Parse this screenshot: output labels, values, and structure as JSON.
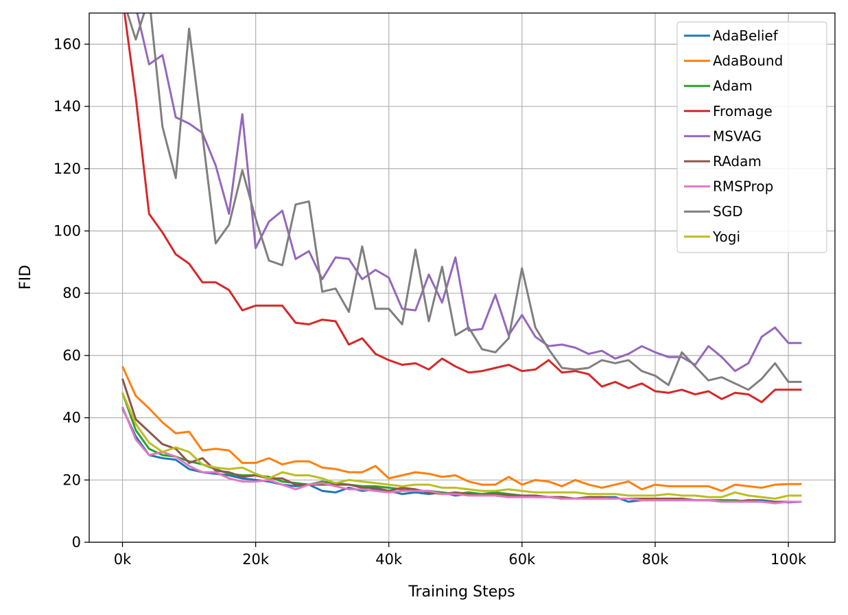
{
  "chart_data": {
    "type": "line",
    "title": "",
    "xlabel": "Training Steps",
    "ylabel": "FID",
    "xlim": [
      -5000,
      107000
    ],
    "ylim": [
      0,
      170
    ],
    "xticks": [
      0,
      20000,
      40000,
      60000,
      80000,
      100000
    ],
    "xtick_labels": [
      "0k",
      "20k",
      "40k",
      "60k",
      "80k",
      "100k"
    ],
    "yticks": [
      0,
      20,
      40,
      60,
      80,
      100,
      120,
      140,
      160
    ],
    "ytick_labels": [
      "0",
      "20",
      "40",
      "60",
      "80",
      "100",
      "120",
      "140",
      "160"
    ],
    "grid": true,
    "legend_position": "top-right",
    "x": [
      0,
      2000,
      4000,
      6000,
      8000,
      10000,
      12000,
      14000,
      16000,
      18000,
      20000,
      22000,
      24000,
      26000,
      28000,
      30000,
      32000,
      34000,
      36000,
      38000,
      40000,
      42000,
      44000,
      46000,
      48000,
      50000,
      52000,
      54000,
      56000,
      58000,
      60000,
      62000,
      64000,
      66000,
      68000,
      70000,
      72000,
      74000,
      76000,
      78000,
      80000,
      82000,
      84000,
      86000,
      88000,
      90000,
      92000,
      94000,
      96000,
      98000,
      100000,
      102000
    ],
    "series": [
      {
        "name": "AdaBelief",
        "color": "#1f77b4",
        "values": [
          43,
          34,
          28,
          27,
          26.5,
          23.5,
          22.5,
          22,
          21.5,
          20.5,
          20,
          19.5,
          18.5,
          18,
          18.5,
          16.5,
          16,
          17.5,
          16.5,
          17,
          16.5,
          15.5,
          16,
          15.5,
          16,
          15,
          15.5,
          15,
          15,
          14.5,
          15,
          14.5,
          14.5,
          14,
          14,
          14,
          14.5,
          14.5,
          13,
          13.5,
          13.5,
          14,
          14,
          13.5,
          13.5,
          13.5,
          13,
          13.5,
          13.5,
          13,
          12.8,
          13
        ]
      },
      {
        "name": "AdaBound",
        "color": "#ff7f0e",
        "values": [
          56.5,
          47,
          43,
          38.5,
          35,
          35.5,
          29.5,
          30,
          29.5,
          25.5,
          25.5,
          27,
          25,
          26,
          26,
          24,
          23.5,
          22.5,
          22.5,
          24.5,
          20.5,
          21.5,
          22.5,
          22,
          21,
          21.5,
          19.5,
          18.5,
          18.5,
          21,
          18.5,
          20,
          19.5,
          18,
          20,
          18.5,
          17.5,
          18.5,
          19.5,
          17,
          18.5,
          18,
          18,
          18,
          18,
          16.5,
          18.5,
          18,
          17.5,
          18.5,
          18.7,
          18.7
        ]
      },
      {
        "name": "Adam",
        "color": "#2ca02c",
        "values": [
          48,
          36,
          30,
          28,
          27.5,
          26,
          25,
          23.5,
          22,
          21.5,
          21.5,
          21,
          19.5,
          19,
          18.5,
          19.5,
          19,
          18.5,
          18,
          18,
          17.5,
          17,
          16.5,
          16.5,
          16,
          15.5,
          16,
          15.5,
          16,
          15.5,
          15,
          15,
          14.5,
          14.5,
          14,
          14.5,
          14.5,
          14,
          14,
          14,
          13.5,
          13.5,
          13.5,
          13.5,
          13.5,
          13.5,
          13.5,
          13,
          13,
          13,
          13,
          13
        ]
      },
      {
        "name": "Fromage",
        "color": "#d62728",
        "values": [
          175,
          143,
          105.5,
          99.5,
          92.5,
          89.5,
          83.5,
          83.5,
          81,
          74.5,
          76,
          76,
          76,
          70.5,
          70,
          71.5,
          71,
          63.5,
          65.5,
          60.5,
          58.5,
          57,
          57.5,
          55.5,
          59,
          56.5,
          54.5,
          55,
          56,
          57,
          55,
          55.5,
          58.5,
          54.5,
          55,
          54,
          50,
          51.5,
          49.5,
          51,
          48.5,
          48,
          49,
          47.5,
          48.5,
          46,
          48,
          47.5,
          45,
          49,
          49,
          49
        ]
      },
      {
        "name": "MSVAG",
        "color": "#9467bd",
        "values": [
          175,
          172,
          153.5,
          156.5,
          136.5,
          134.5,
          131.5,
          121,
          105.5,
          137.5,
          94.5,
          103,
          106.5,
          91,
          93.5,
          84.5,
          91.5,
          91,
          84.5,
          87.5,
          85,
          75,
          74.5,
          86,
          77,
          91.5,
          68,
          68.5,
          79.5,
          66.5,
          73,
          66,
          63,
          63.5,
          62.5,
          60.5,
          61.5,
          59,
          60.5,
          63,
          61,
          59.5,
          59.5,
          57,
          63,
          59.5,
          55,
          57.5,
          66,
          69,
          64,
          64
        ]
      },
      {
        "name": "RAdam",
        "color": "#8c564b",
        "values": [
          52.5,
          39.5,
          35.5,
          31.5,
          30,
          25.5,
          27,
          23,
          22.5,
          21,
          21.5,
          20.5,
          20.5,
          18.5,
          18.5,
          18.5,
          18.5,
          18.5,
          17.5,
          17.5,
          16.5,
          17.5,
          17,
          16,
          15.5,
          16,
          15.5,
          15,
          15.5,
          15,
          15,
          15,
          14.5,
          14.5,
          14,
          14.5,
          14.5,
          14,
          14,
          14,
          14,
          14,
          14,
          13.5,
          13.5,
          13,
          13,
          13.5,
          13,
          13,
          13,
          13
        ]
      },
      {
        "name": "RMSProp",
        "color": "#e377c2",
        "values": [
          43.5,
          33,
          28,
          29,
          27.5,
          24.5,
          22.5,
          22.5,
          20.5,
          19.5,
          19.5,
          20,
          18.5,
          17,
          18.5,
          19,
          18,
          17,
          17,
          16.5,
          16,
          16.5,
          16.5,
          16.5,
          15.5,
          15.5,
          15,
          15,
          15,
          14.5,
          14.5,
          14.5,
          14.5,
          14,
          14,
          14,
          14,
          14,
          14,
          13.5,
          13.5,
          13.5,
          13.5,
          13.5,
          13.5,
          13,
          13,
          13,
          13,
          12.5,
          13,
          13
        ]
      },
      {
        "name": "SGD",
        "color": "#7f7f7f",
        "values": [
          175,
          161.5,
          175,
          133.5,
          117,
          165,
          131,
          96,
          102,
          119.5,
          104,
          90.5,
          89,
          108.5,
          109.5,
          80.5,
          81.5,
          74,
          95,
          75,
          75,
          70,
          94,
          71,
          88.5,
          66.5,
          69,
          62,
          61,
          65.5,
          88,
          69,
          62,
          56,
          55.5,
          56,
          58.5,
          57.5,
          58.5,
          55,
          53.5,
          50.5,
          61,
          56.5,
          52,
          53,
          51,
          49,
          52.5,
          57.5,
          51.5,
          51.5
        ]
      },
      {
        "name": "Yogi",
        "color": "#bcbd22",
        "values": [
          48,
          38,
          32,
          29,
          30.5,
          29,
          25,
          24,
          23.5,
          24,
          22,
          20.5,
          22.5,
          21.5,
          21.5,
          20.5,
          19,
          20,
          19.5,
          19,
          18.5,
          18,
          18.5,
          18.5,
          17.5,
          17.5,
          17,
          16.5,
          16.5,
          17,
          16.5,
          16,
          16,
          16,
          16,
          15.5,
          15.5,
          15.5,
          15,
          15,
          15,
          15.5,
          15,
          15,
          14.5,
          14.5,
          16,
          15,
          14.5,
          14,
          15,
          15
        ]
      }
    ]
  }
}
